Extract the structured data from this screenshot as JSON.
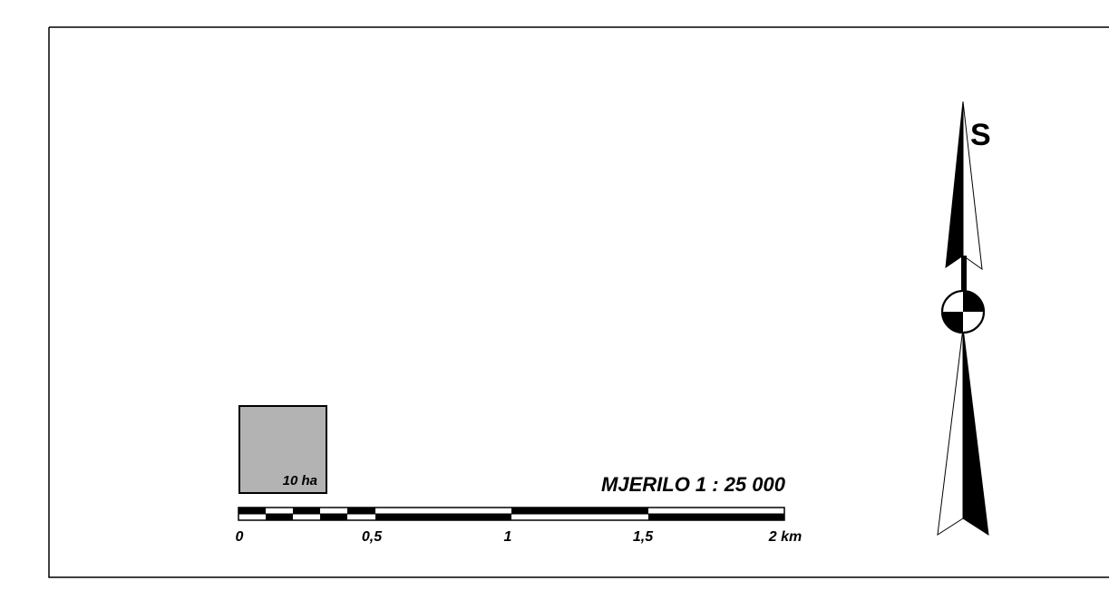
{
  "legend": {
    "area_label": "10 ha",
    "area_fill": "#b3b3b3",
    "scale_title": "MJERILO 1 : 25 000",
    "scale_ticks": [
      "0",
      "0,5",
      "1",
      "1,5",
      "2 km"
    ]
  },
  "north_arrow": {
    "letter": "S",
    "icon": "north-arrow-icon"
  },
  "colors": {
    "ink": "#000000",
    "paper": "#ffffff"
  }
}
